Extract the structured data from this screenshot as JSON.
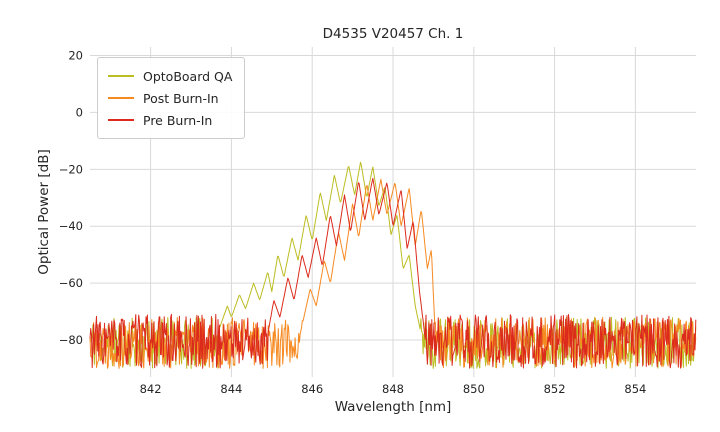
{
  "chart_data": {
    "type": "line",
    "title": "D4535 V20457 Ch. 1",
    "xlabel": "Wavelength [nm]",
    "ylabel": "Optical Power [dB]",
    "xlim": [
      840.5,
      855.5
    ],
    "ylim": [
      -93,
      23
    ],
    "xticks": [
      842,
      844,
      846,
      848,
      850,
      852,
      854
    ],
    "yticks": [
      20,
      0,
      -20,
      -40,
      -60,
      -80
    ],
    "grid": true,
    "grid_color": "#d9d9d9",
    "legend_position": "upper left",
    "text_color": "#262626",
    "series": [
      {
        "name": "OptoBoard QA",
        "color": "#bcbd22",
        "peak_wavelength_nm": 847.2,
        "peak_db": -17.2,
        "noise_floor_db": {
          "min": -90,
          "max": -72
        },
        "noise_seed": 11,
        "envelope_points": [
          [
            843.7,
            -76
          ],
          [
            843.9,
            -68
          ],
          [
            844.0,
            -72
          ],
          [
            844.2,
            -64
          ],
          [
            844.35,
            -69
          ],
          [
            844.55,
            -60
          ],
          [
            844.7,
            -66
          ],
          [
            844.9,
            -56
          ],
          [
            845.0,
            -63
          ],
          [
            845.15,
            -50
          ],
          [
            845.3,
            -58
          ],
          [
            845.5,
            -44
          ],
          [
            845.65,
            -52
          ],
          [
            845.85,
            -36
          ],
          [
            846.0,
            -45
          ],
          [
            846.2,
            -28
          ],
          [
            846.35,
            -38
          ],
          [
            846.55,
            -22
          ],
          [
            846.7,
            -32
          ],
          [
            846.9,
            -18.5
          ],
          [
            847.05,
            -29
          ],
          [
            847.2,
            -17.2
          ],
          [
            847.35,
            -30
          ],
          [
            847.5,
            -19
          ],
          [
            847.65,
            -33
          ],
          [
            847.8,
            -26
          ],
          [
            847.95,
            -43
          ],
          [
            848.1,
            -36
          ],
          [
            848.25,
            -55
          ],
          [
            848.4,
            -50
          ],
          [
            848.55,
            -68
          ],
          [
            848.7,
            -78
          ]
        ]
      },
      {
        "name": "Post Burn-In",
        "color": "#f68a21",
        "peak_wavelength_nm": 847.7,
        "peak_db": -23.5,
        "noise_floor_db": {
          "min": -90,
          "max": -72
        },
        "noise_seed": 22,
        "envelope_points": [
          [
            845.7,
            -78
          ],
          [
            845.95,
            -62
          ],
          [
            846.1,
            -68
          ],
          [
            846.3,
            -52
          ],
          [
            846.45,
            -60
          ],
          [
            846.65,
            -42
          ],
          [
            846.8,
            -52
          ],
          [
            847.0,
            -32
          ],
          [
            847.15,
            -44
          ],
          [
            847.35,
            -25
          ],
          [
            847.5,
            -38
          ],
          [
            847.7,
            -23.5
          ],
          [
            847.85,
            -36
          ],
          [
            848.05,
            -24.5
          ],
          [
            848.2,
            -40
          ],
          [
            848.4,
            -26.5
          ],
          [
            848.55,
            -47
          ],
          [
            848.7,
            -34
          ],
          [
            848.85,
            -55
          ],
          [
            848.95,
            -48
          ],
          [
            849.05,
            -80
          ]
        ]
      },
      {
        "name": "Pre Burn-In",
        "color": "#dc2a1c",
        "peak_wavelength_nm": 847.5,
        "peak_db": -23,
        "noise_floor_db": {
          "min": -90,
          "max": -71
        },
        "noise_seed": 33,
        "envelope_points": [
          [
            844.9,
            -78
          ],
          [
            845.05,
            -66
          ],
          [
            845.2,
            -72
          ],
          [
            845.4,
            -58
          ],
          [
            845.55,
            -66
          ],
          [
            845.75,
            -50
          ],
          [
            845.9,
            -58
          ],
          [
            846.1,
            -44
          ],
          [
            846.25,
            -54
          ],
          [
            846.45,
            -36
          ],
          [
            846.6,
            -47
          ],
          [
            846.8,
            -29
          ],
          [
            846.95,
            -42
          ],
          [
            847.15,
            -24
          ],
          [
            847.3,
            -38
          ],
          [
            847.5,
            -23
          ],
          [
            847.65,
            -36
          ],
          [
            847.85,
            -24.5
          ],
          [
            848.0,
            -40
          ],
          [
            848.2,
            -27
          ],
          [
            848.35,
            -48
          ],
          [
            848.5,
            -38
          ],
          [
            848.65,
            -62
          ],
          [
            848.8,
            -80
          ]
        ]
      }
    ]
  }
}
